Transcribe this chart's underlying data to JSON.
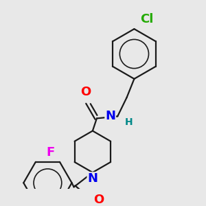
{
  "background_color": "#e8e8e8",
  "bond_color": "#1a1a1a",
  "bond_width": 1.6,
  "atom_colors": {
    "O": "#ff0000",
    "N": "#0000ee",
    "H": "#008888",
    "F": "#ee00ee",
    "Cl": "#22aa00"
  },
  "font_size_main": 13,
  "font_size_h": 10,
  "figsize": [
    3.0,
    3.0
  ],
  "dpi": 100
}
